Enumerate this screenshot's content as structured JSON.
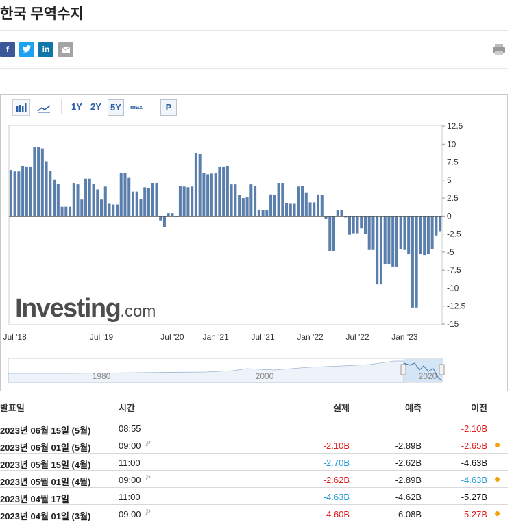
{
  "header": {
    "title": "한국 무역수지",
    "share": {
      "facebook": "f",
      "linkedin": "in"
    }
  },
  "toolbar": {
    "ranges": [
      "1Y",
      "2Y",
      "5Y",
      "max"
    ],
    "selected": "5Y",
    "p": "P"
  },
  "chart_data": {
    "type": "bar",
    "color": "#5a7fad",
    "grid": false,
    "watermark": {
      "main": "Investing",
      "suffix": ".com"
    },
    "categories": [
      null,
      "Jul '18",
      null,
      null,
      null,
      null,
      null,
      null,
      null,
      null,
      null,
      null,
      null,
      null,
      null,
      null,
      null,
      null,
      null,
      null,
      null,
      null,
      null,
      "Jul '19",
      null,
      null,
      null,
      null,
      null,
      null,
      null,
      null,
      null,
      null,
      null,
      null,
      null,
      null,
      null,
      null,
      null,
      "Jul '20",
      null,
      null,
      null,
      null,
      null,
      null,
      null,
      null,
      null,
      null,
      "Jan '21",
      null,
      null,
      null,
      null,
      null,
      null,
      null,
      null,
      null,
      null,
      null,
      "Jul '21",
      null,
      null,
      null,
      null,
      null,
      null,
      null,
      null,
      null,
      null,
      null,
      "Jan '22",
      null,
      null,
      null,
      null,
      null,
      null,
      null,
      null,
      null,
      null,
      null,
      "Jul '22",
      null,
      null,
      null,
      null,
      null,
      null,
      null,
      null,
      null,
      null,
      null,
      "Jan '23",
      null,
      null,
      null,
      null,
      null,
      null,
      null,
      null,
      null
    ],
    "values": [
      6.4,
      6.2,
      6.2,
      6.9,
      6.8,
      6.8,
      9.6,
      9.6,
      9.4,
      7.6,
      6.3,
      5.1,
      4.5,
      1.3,
      1.3,
      1.3,
      4.6,
      4.4,
      2.3,
      5.2,
      5.2,
      4.5,
      3.7,
      2.3,
      4.1,
      1.7,
      1.6,
      1.6,
      6.0,
      6.0,
      5.3,
      3.4,
      3.4,
      2.4,
      4.0,
      3.9,
      4.6,
      4.6,
      -0.6,
      -1.5,
      0.4,
      0.4,
      0,
      4.2,
      4.1,
      4.0,
      4.1,
      8.7,
      8.6,
      6.0,
      5.8,
      5.9,
      6.0,
      6.8,
      6.8,
      6.9,
      4.4,
      4.4,
      2.9,
      2.5,
      2.6,
      4.4,
      4.2,
      0.9,
      0.8,
      0.8,
      3.0,
      2.9,
      4.6,
      4.6,
      1.8,
      1.7,
      1.7,
      4.1,
      4.2,
      3.3,
      1.9,
      1.9,
      3.0,
      2.9,
      -0.4,
      -4.9,
      -4.9,
      0.8,
      0.8,
      -0.2,
      -2.6,
      -2.4,
      -2.4,
      -1.7,
      -2.5,
      -4.7,
      -4.7,
      -9.5,
      -9.5,
      -6.7,
      -6.7,
      -7.0,
      -7.0,
      -4.6,
      -4.7,
      -5.3,
      -12.7,
      -12.7,
      -5.3,
      -5.4,
      -5.3,
      -4.6,
      -2.7,
      -2.1
    ],
    "ylim": [
      -15,
      12.5
    ],
    "yticks": [
      -15,
      -12.5,
      -10,
      -7.5,
      -5,
      -2.5,
      0,
      2.5,
      5,
      7.5,
      10,
      12.5
    ],
    "navigator": [
      "1980",
      "2000",
      "2020"
    ]
  },
  "table": {
    "headers": [
      "발표일",
      "시간",
      "실제",
      "예측",
      "이전"
    ],
    "rows": [
      {
        "date": "2023년 06월 15일 (5월)",
        "time": "08:55",
        "mark": null,
        "actual": null,
        "actual_color": null,
        "forecast": null,
        "previous": "-2.10B",
        "previous_color": "#e21d1d",
        "dot": false
      },
      {
        "date": "2023년 06월 01일 (5월)",
        "time": "09:00",
        "mark": "P",
        "actual": "-2.10B",
        "actual_color": "#e21d1d",
        "forecast": "-2.89B",
        "previous": "-2.65B",
        "previous_color": "#e21d1d",
        "dot": true
      },
      {
        "date": "2023년 05월 15일 (4월)",
        "time": "11:00",
        "mark": null,
        "actual": "-2.70B",
        "actual_color": "#1c9ad6",
        "forecast": "-2.62B",
        "previous": "-4.63B",
        "previous_color": "#111111",
        "dot": false
      },
      {
        "date": "2023년 05월 01일 (4월)",
        "time": "09:00",
        "mark": "P",
        "actual": "-2.62B",
        "actual_color": "#e21d1d",
        "forecast": "-2.89B",
        "previous": "-4.63B",
        "previous_color": "#1c9ad6",
        "dot": true
      },
      {
        "date": "2023년 04월 17일",
        "time": "11:00",
        "mark": null,
        "actual": "-4.63B",
        "actual_color": "#1c9ad6",
        "forecast": "-4.62B",
        "previous": "-5.27B",
        "previous_color": "#111111",
        "dot": false
      },
      {
        "date": "2023년 04월 01일 (3월)",
        "time": "09:00",
        "mark": "P",
        "actual": "-4.60B",
        "actual_color": "#e21d1d",
        "forecast": "-6.08B",
        "previous": "-5.27B",
        "previous_color": "#e21d1d",
        "dot": true
      }
    ]
  }
}
